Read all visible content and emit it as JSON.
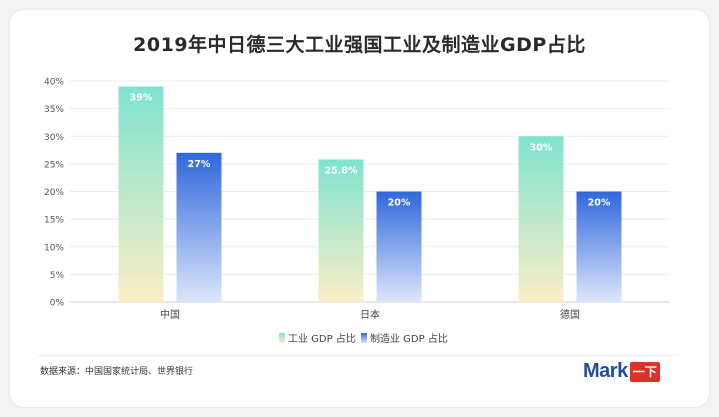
{
  "chart_data": {
    "type": "bar",
    "title": "2019年中日德三大工业强国工业及制造业GDP占比",
    "categories": [
      "中国",
      "日本",
      "德国"
    ],
    "series": [
      {
        "name": "工业 GDP 占比",
        "values": [
          39,
          25.8,
          30
        ],
        "labels": [
          "39%",
          "25.8%",
          "30%"
        ],
        "color_top": "#7fe3cf",
        "color_bottom": "#fbeec6"
      },
      {
        "name": "制造业 GDP 占比",
        "values": [
          27,
          20,
          20
        ],
        "labels": [
          "27%",
          "20%",
          "20%"
        ],
        "color_top": "#2f67dc",
        "color_bottom": "#dce6fb"
      }
    ],
    "ylim": [
      0,
      40
    ],
    "yticks": [
      0,
      5,
      10,
      15,
      20,
      25,
      30,
      35,
      40
    ],
    "ytick_labels": [
      "0%",
      "5%",
      "10%",
      "15%",
      "20%",
      "25%",
      "30%",
      "35%",
      "40%"
    ],
    "xlabel": "",
    "ylabel": "",
    "grid": true,
    "legend_position": "bottom-center"
  },
  "footer": {
    "source": "数据来源：中国国家统计局、世界银行",
    "brand_text": "Mark",
    "brand_box": "一下"
  }
}
